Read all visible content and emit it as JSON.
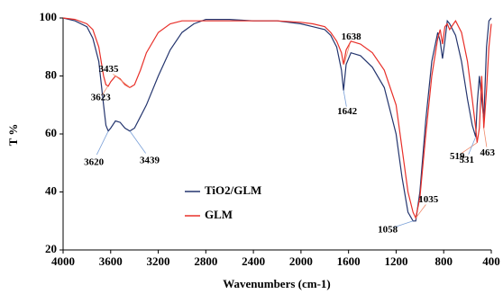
{
  "chart_data": {
    "type": "line",
    "xlabel": "Wavenumbers (cm-1)",
    "ylabel": "T %",
    "x": [
      4000,
      3900,
      3800,
      3750,
      3700,
      3660,
      3640,
      3620,
      3600,
      3560,
      3520,
      3480,
      3439,
      3400,
      3350,
      3300,
      3200,
      3100,
      3000,
      2900,
      2800,
      2600,
      2400,
      2200,
      2000,
      1900,
      1800,
      1750,
      1700,
      1660,
      1642,
      1620,
      1580,
      1500,
      1400,
      1300,
      1200,
      1150,
      1100,
      1058,
      1035,
      1000,
      950,
      900,
      850,
      830,
      810,
      790,
      770,
      750,
      700,
      650,
      600,
      560,
      531,
      519,
      500,
      480,
      463,
      440,
      420,
      400
    ],
    "series": [
      {
        "name": "TiO2/GLM",
        "color": "#24356e",
        "values": [
          100,
          99,
          97,
          93,
          85,
          70,
          63,
          61,
          62,
          64.5,
          64,
          62,
          61,
          62,
          66,
          70,
          80,
          89,
          95,
          98,
          99.5,
          99.5,
          99,
          99,
          98,
          97,
          96,
          94,
          90,
          82,
          75,
          84,
          88,
          87,
          83,
          76,
          60,
          45,
          33,
          30,
          30,
          40,
          65,
          85,
          95,
          92,
          86,
          92,
          99,
          98,
          94,
          85,
          72,
          63,
          59,
          70,
          80,
          72,
          65,
          90,
          99,
          100
        ]
      },
      {
        "name": "GLM",
        "color": "#e8302a",
        "values": [
          100,
          99.5,
          98,
          96,
          90,
          80,
          77,
          76.5,
          78,
          80,
          79,
          77,
          76,
          77,
          82,
          88,
          95,
          98,
          99,
          99,
          99,
          99,
          99,
          99,
          98.5,
          98,
          97,
          95,
          92,
          88,
          84,
          89,
          92,
          91,
          88,
          82,
          70,
          55,
          40,
          33,
          31,
          38,
          60,
          80,
          93,
          96,
          91,
          97,
          98,
          96,
          99,
          95,
          85,
          72,
          62,
          57,
          62,
          80,
          62,
          75,
          90,
          98
        ]
      }
    ],
    "annotations": [
      {
        "text": "3620",
        "x": 3620,
        "y": 61,
        "series": 0
      },
      {
        "text": "3623",
        "x": 3623,
        "y": 76.5,
        "series": 1
      },
      {
        "text": "3435",
        "x": 3435,
        "y": 76,
        "series": 1
      },
      {
        "text": "3439",
        "x": 3439,
        "y": 61,
        "series": 0
      },
      {
        "text": "1638",
        "x": 1638,
        "y": 84,
        "series": 1
      },
      {
        "text": "1642",
        "x": 1642,
        "y": 75,
        "series": 0
      },
      {
        "text": "1035",
        "x": 1035,
        "y": 31,
        "series": 1
      },
      {
        "text": "1058",
        "x": 1058,
        "y": 30,
        "series": 0
      },
      {
        "text": "519",
        "x": 519,
        "y": 57,
        "series": 1
      },
      {
        "text": "531",
        "x": 531,
        "y": 59,
        "series": 0
      },
      {
        "text": "463",
        "x": 463,
        "y": 62,
        "series": 1
      }
    ],
    "xlim": [
      4000,
      400
    ],
    "ylim": [
      20,
      100
    ],
    "xticks": [
      4000,
      3600,
      3200,
      2800,
      2400,
      2000,
      1600,
      1200,
      800,
      400
    ],
    "yticks": [
      20,
      40,
      60,
      80,
      100
    ]
  }
}
